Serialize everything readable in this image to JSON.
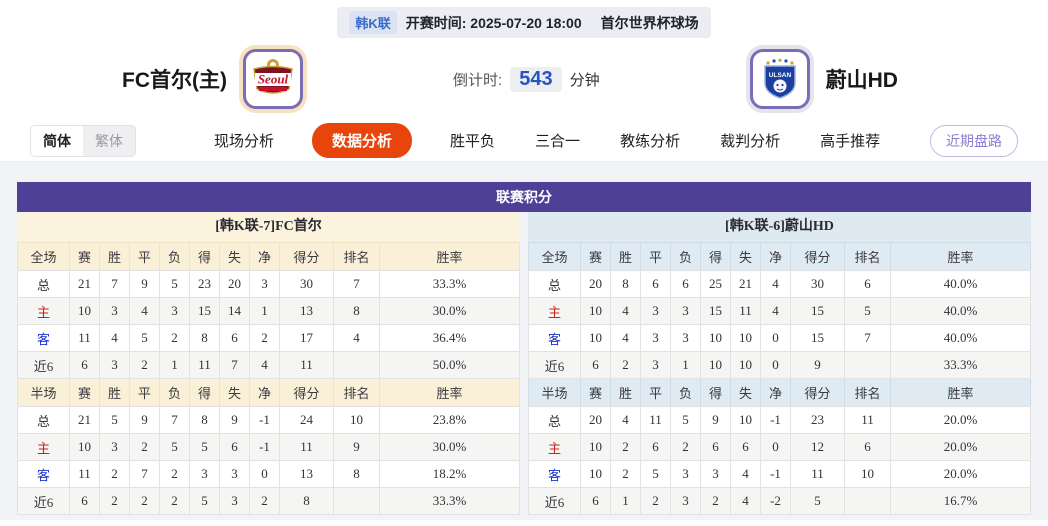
{
  "header": {
    "league_badge": "韩K联",
    "kickoff": "开赛时间: 2025-07-20 18:00",
    "venue": "首尔世界杯球场",
    "home_team": "FC首尔(主)",
    "away_team": "蔚山HD",
    "home_logo_text": "Seoul",
    "away_logo_text": "ULSAN",
    "countdown_label": "倒计时:",
    "countdown_value": "543",
    "countdown_unit": "分钟"
  },
  "nav": {
    "lang_simplified": "简体",
    "lang_traditional": "繁体",
    "tabs": [
      {
        "label": "现场分析",
        "active": false
      },
      {
        "label": "数据分析",
        "active": true
      },
      {
        "label": "胜平负",
        "active": false
      },
      {
        "label": "三合一",
        "active": false
      },
      {
        "label": "教练分析",
        "active": false
      },
      {
        "label": "裁判分析",
        "active": false
      },
      {
        "label": "高手推荐",
        "active": false
      }
    ],
    "recent_button": "近期盘路"
  },
  "table": {
    "title": "联赛积分",
    "left": {
      "team_header": "[韩K联-7]FC首尔",
      "full_header": [
        "全场",
        "赛",
        "胜",
        "平",
        "负",
        "得",
        "失",
        "净",
        "得分",
        "排名",
        "胜率"
      ],
      "full_rows": [
        {
          "label": "总",
          "cells": [
            "21",
            "7",
            "9",
            "5",
            "23",
            "20",
            "3",
            "30",
            "7",
            "33.3%"
          ]
        },
        {
          "label": "主",
          "cells": [
            "10",
            "3",
            "4",
            "3",
            "15",
            "14",
            "1",
            "13",
            "8",
            "30.0%"
          ]
        },
        {
          "label": "客",
          "cells": [
            "11",
            "4",
            "5",
            "2",
            "8",
            "6",
            "2",
            "17",
            "4",
            "36.4%"
          ]
        },
        {
          "label": "近6",
          "cells": [
            "6",
            "3",
            "2",
            "1",
            "11",
            "7",
            "4",
            "11",
            "",
            "50.0%"
          ]
        }
      ],
      "half_header": [
        "半场",
        "赛",
        "胜",
        "平",
        "负",
        "得",
        "失",
        "净",
        "得分",
        "排名",
        "胜率"
      ],
      "half_rows": [
        {
          "label": "总",
          "cells": [
            "21",
            "5",
            "9",
            "7",
            "8",
            "9",
            "-1",
            "24",
            "10",
            "23.8%"
          ]
        },
        {
          "label": "主",
          "cells": [
            "10",
            "3",
            "2",
            "5",
            "5",
            "6",
            "-1",
            "11",
            "9",
            "30.0%"
          ]
        },
        {
          "label": "客",
          "cells": [
            "11",
            "2",
            "7",
            "2",
            "3",
            "3",
            "0",
            "13",
            "8",
            "18.2%"
          ]
        },
        {
          "label": "近6",
          "cells": [
            "6",
            "2",
            "2",
            "2",
            "5",
            "3",
            "2",
            "8",
            "",
            "33.3%"
          ]
        }
      ]
    },
    "right": {
      "team_header": "[韩K联-6]蔚山HD",
      "full_header": [
        "全场",
        "赛",
        "胜",
        "平",
        "负",
        "得",
        "失",
        "净",
        "得分",
        "排名",
        "胜率"
      ],
      "full_rows": [
        {
          "label": "总",
          "cells": [
            "20",
            "8",
            "6",
            "6",
            "25",
            "21",
            "4",
            "30",
            "6",
            "40.0%"
          ]
        },
        {
          "label": "主",
          "cells": [
            "10",
            "4",
            "3",
            "3",
            "15",
            "11",
            "4",
            "15",
            "5",
            "40.0%"
          ]
        },
        {
          "label": "客",
          "cells": [
            "10",
            "4",
            "3",
            "3",
            "10",
            "10",
            "0",
            "15",
            "7",
            "40.0%"
          ]
        },
        {
          "label": "近6",
          "cells": [
            "6",
            "2",
            "3",
            "1",
            "10",
            "10",
            "0",
            "9",
            "",
            "33.3%"
          ]
        }
      ],
      "half_header": [
        "半场",
        "赛",
        "胜",
        "平",
        "负",
        "得",
        "失",
        "净",
        "得分",
        "排名",
        "胜率"
      ],
      "half_rows": [
        {
          "label": "总",
          "cells": [
            "20",
            "4",
            "11",
            "5",
            "9",
            "10",
            "-1",
            "23",
            "11",
            "20.0%"
          ]
        },
        {
          "label": "主",
          "cells": [
            "10",
            "2",
            "6",
            "2",
            "6",
            "6",
            "0",
            "12",
            "6",
            "20.0%"
          ]
        },
        {
          "label": "客",
          "cells": [
            "10",
            "2",
            "5",
            "3",
            "3",
            "4",
            "-1",
            "11",
            "10",
            "20.0%"
          ]
        },
        {
          "label": "近6",
          "cells": [
            "6",
            "1",
            "2",
            "3",
            "2",
            "4",
            "-2",
            "5",
            "",
            "16.7%"
          ]
        }
      ]
    }
  },
  "colors": {
    "title_purple": "#4e4097",
    "active_tab_orange": "#e8450d",
    "home_subheader_cream": "#fcf3de",
    "away_subheader_blue": "#dfe9f1",
    "home_label_red": "#cc1f1f",
    "away_label_blue": "#1d35cc",
    "countdown_blue": "#2456bd"
  }
}
